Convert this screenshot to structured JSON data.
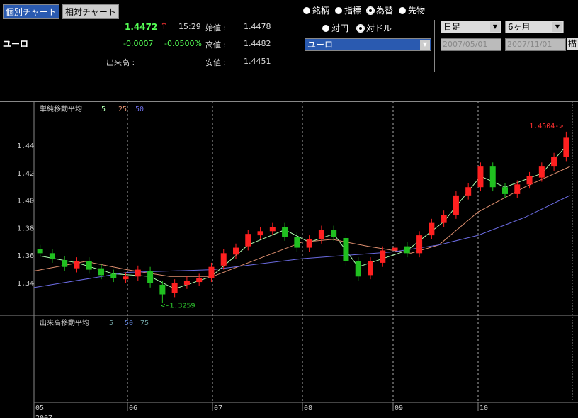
{
  "tabs": {
    "items": [
      "個別チャート",
      "相対チャート"
    ],
    "selected": 0
  },
  "quote": {
    "name": "ユーロ",
    "price": "1.4472",
    "arrow": "↑",
    "time": "15:29",
    "change": "-0.0007",
    "change_pct": "-0.0500%",
    "volume_label": "出来高 :",
    "rows": [
      {
        "label": "始値 :",
        "value": "1.4478"
      },
      {
        "label": "高値 :",
        "value": "1.4482"
      },
      {
        "label": "安値 :",
        "value": "1.4451"
      }
    ]
  },
  "controls": {
    "kinds": [
      "銘柄",
      "指標",
      "為替",
      "先物"
    ],
    "kind_selected": 2,
    "bases": [
      "対円",
      "対ドル"
    ],
    "base_selected": 1,
    "currency": "ユーロ",
    "interval": "日足",
    "span": "6ヶ月",
    "date_from": "2007/05/01",
    "date_to": "2007/11/01",
    "draw_button": "描"
  },
  "chart_data": {
    "type": "candlestick",
    "legend_title": "単純移動平均",
    "volume_title": "出来高移動平均",
    "volume_legend": [
      {
        "name": "5",
        "color": "#6fa0a0"
      },
      {
        "name": "50",
        "color": "#5f7fd0"
      },
      {
        "name": "75",
        "color": "#6fa0a0"
      }
    ],
    "up_color": "#ff2020",
    "down_color": "#20c020",
    "xlim": [
      -0.5,
      43.5
    ],
    "ylim": [
      1.3168,
      1.4725
    ],
    "yticks": [
      1.34,
      1.36,
      1.38,
      {
        "value": 1.4,
        "label": "1.40"
      },
      1.42,
      1.44
    ],
    "x_labels": [
      "05",
      "06",
      "07",
      "08",
      "09",
      "10"
    ],
    "year": "2007",
    "open": [
      1.365,
      1.362,
      1.357,
      1.351,
      1.356,
      1.351,
      1.347,
      1.343,
      1.345,
      1.349,
      1.339,
      1.333,
      1.339,
      1.341,
      1.344,
      1.353,
      1.361,
      1.367,
      1.375,
      1.378,
      1.381,
      1.374,
      1.366,
      1.372,
      1.379,
      1.373,
      1.356,
      1.346,
      1.355,
      1.364,
      1.367,
      1.362,
      1.375,
      1.384,
      1.39,
      1.404,
      1.41,
      1.425,
      1.41,
      1.405,
      1.412,
      1.417,
      1.425,
      1.432
    ],
    "high": [
      1.368,
      1.365,
      1.36,
      1.359,
      1.359,
      1.354,
      1.35,
      1.348,
      1.353,
      1.352,
      1.342,
      1.343,
      1.345,
      1.347,
      1.355,
      1.365,
      1.369,
      1.379,
      1.381,
      1.384,
      1.384,
      1.377,
      1.375,
      1.382,
      1.382,
      1.376,
      1.359,
      1.359,
      1.367,
      1.369,
      1.37,
      1.378,
      1.387,
      1.393,
      1.407,
      1.413,
      1.428,
      1.428,
      1.413,
      1.415,
      1.421,
      1.428,
      1.435,
      1.4504
    ],
    "low": [
      1.359,
      1.355,
      1.349,
      1.348,
      1.347,
      1.343,
      1.341,
      1.34,
      1.342,
      1.337,
      1.3259,
      1.33,
      1.336,
      1.338,
      1.341,
      1.35,
      1.358,
      1.364,
      1.372,
      1.375,
      1.371,
      1.363,
      1.363,
      1.369,
      1.371,
      1.353,
      1.342,
      1.343,
      1.352,
      1.361,
      1.359,
      1.359,
      1.372,
      1.381,
      1.387,
      1.401,
      1.407,
      1.407,
      1.402,
      1.402,
      1.409,
      1.414,
      1.422,
      1.429
    ],
    "close": [
      1.362,
      1.358,
      1.352,
      1.356,
      1.35,
      1.346,
      1.344,
      1.345,
      1.35,
      1.34,
      1.332,
      1.34,
      1.342,
      1.344,
      1.352,
      1.362,
      1.366,
      1.376,
      1.378,
      1.381,
      1.374,
      1.366,
      1.372,
      1.379,
      1.374,
      1.356,
      1.345,
      1.356,
      1.364,
      1.366,
      1.362,
      1.375,
      1.384,
      1.39,
      1.404,
      1.41,
      1.425,
      1.41,
      1.405,
      1.412,
      1.418,
      1.425,
      1.432,
      1.446
    ],
    "series": [
      {
        "name": "5",
        "color": "#b0ffb0",
        "x": [
          0,
          3,
          6,
          9,
          11,
          14,
          17,
          20,
          22,
          24,
          26,
          28,
          30,
          33,
          36,
          38,
          41,
          43
        ],
        "values": [
          1.36,
          1.355,
          1.347,
          1.345,
          1.336,
          1.345,
          1.368,
          1.379,
          1.37,
          1.376,
          1.352,
          1.358,
          1.364,
          1.385,
          1.418,
          1.41,
          1.42,
          1.44
        ]
      },
      {
        "name": "25",
        "color": "#e09070",
        "x": [
          -0.5,
          3.7,
          7.1,
          10.6,
          14.1,
          17,
          21.4,
          23.9,
          26.8,
          30.3,
          32.6,
          35.8,
          39.6,
          43.3
        ],
        "values": [
          1.349,
          1.356,
          1.35,
          1.345,
          1.345,
          1.355,
          1.37,
          1.372,
          1.367,
          1.362,
          1.368,
          1.392,
          1.41,
          1.425
        ]
      },
      {
        "name": "50",
        "color": "#6a6ae0",
        "x": [
          -0.5,
          7.1,
          14.1,
          21.4,
          28.9,
          32.6,
          35.8,
          39.6,
          43.3
        ],
        "values": [
          1.337,
          1.348,
          1.35,
          1.358,
          1.363,
          1.368,
          1.375,
          1.388,
          1.404
        ]
      }
    ],
    "annotations": [
      {
        "text": "1.4504->",
        "color": "#ff3030"
      },
      {
        "text": "<-1.3259",
        "color": "#30d030"
      }
    ]
  }
}
